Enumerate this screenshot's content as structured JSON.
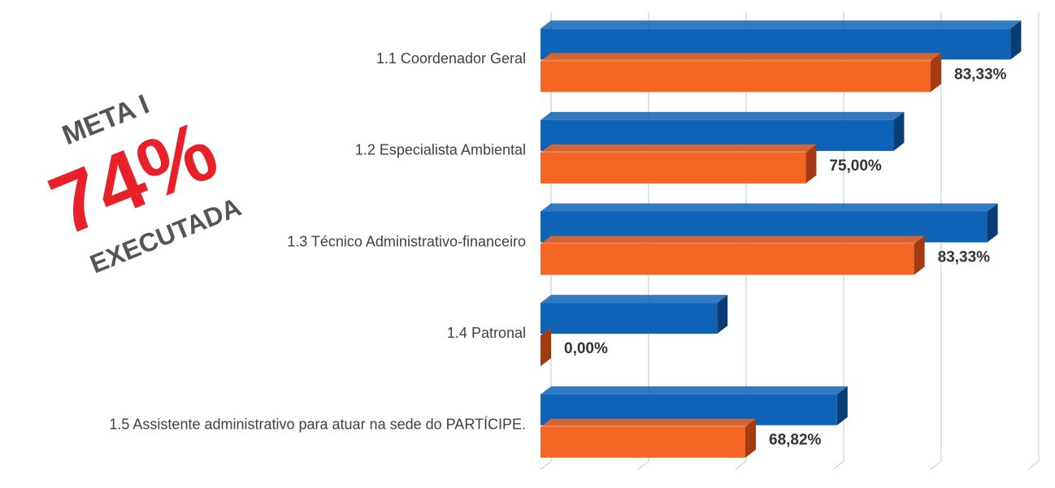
{
  "chart_data": {
    "type": "bar3d_horizontal",
    "annotations": [
      "META I",
      "74%",
      "EXECUTADA"
    ],
    "categories": [
      "1.1 Coordenador Geral",
      "1.2 Especialista Ambiental",
      "1.3 Técnico Administrativo-financeiro",
      "1.4 Patronal",
      "1.5 Assistente administrativo para atuar na sede do PARTÍCIPE."
    ],
    "series": [
      {
        "color": "#0e63b6",
        "side_color": "#0a3d73",
        "values": [
          4.82,
          3.62,
          4.58,
          1.81,
          3.04
        ]
      },
      {
        "color": "#f26522",
        "side_color": "#a23a14",
        "values": [
          4.0,
          2.72,
          3.83,
          0,
          2.1
        ],
        "value_labels": [
          "83,33%",
          "75,00%",
          "83,33%",
          "0,00%",
          "68,82%"
        ]
      }
    ],
    "xlim": [
      0,
      5
    ],
    "xticks": [
      0,
      1,
      2,
      3,
      4,
      5
    ],
    "grid": true
  }
}
